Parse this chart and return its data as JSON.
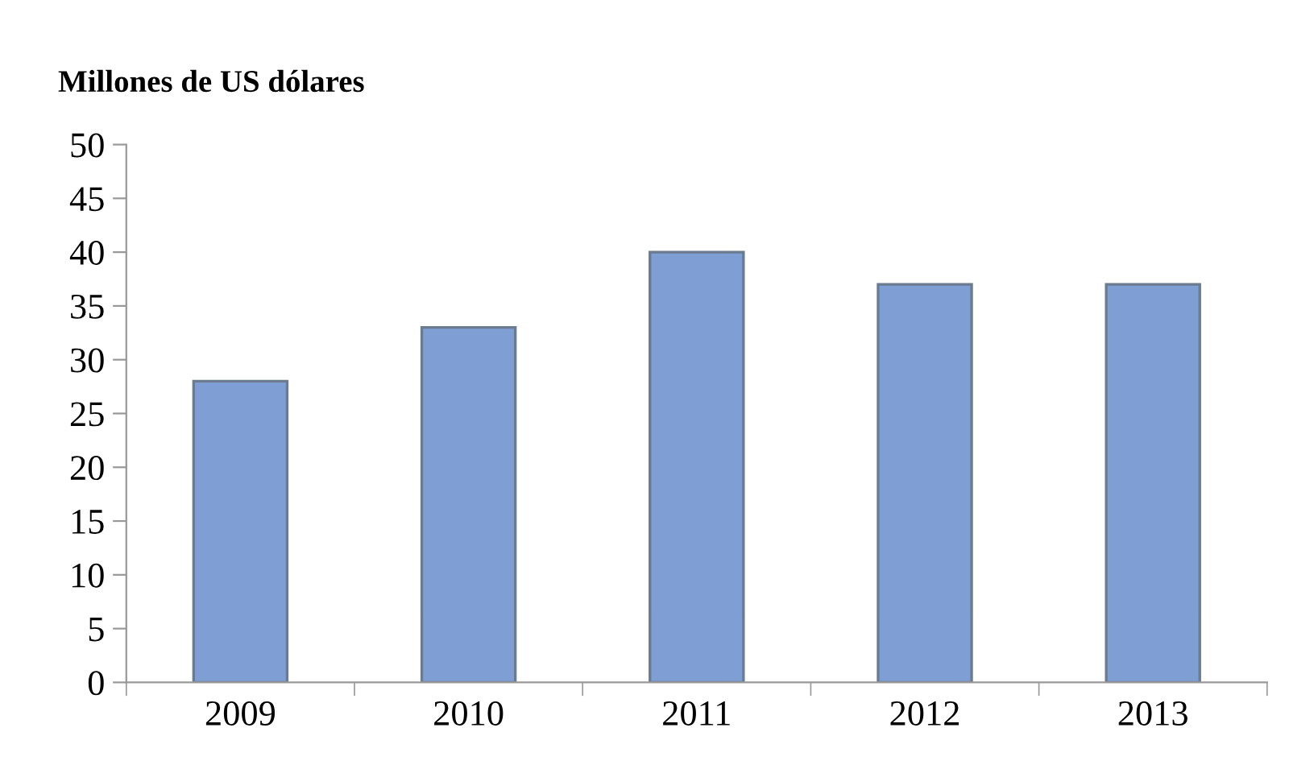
{
  "chart_data": {
    "type": "bar",
    "title": "Millones de US dólares",
    "categories": [
      "2009",
      "2010",
      "2011",
      "2012",
      "2013"
    ],
    "values": [
      28,
      33,
      40,
      37,
      37
    ],
    "color": "#7f9fd4",
    "ylim": [
      0,
      50
    ],
    "yticks": [
      0,
      5,
      10,
      15,
      20,
      25,
      30,
      35,
      40,
      45,
      50
    ],
    "grid": false
  }
}
